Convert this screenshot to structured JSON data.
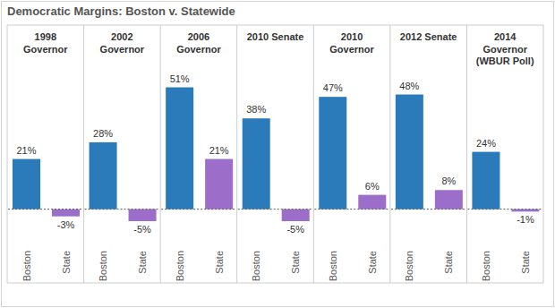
{
  "title": "Democratic Margins: Boston v. Statewide",
  "chart_data": [
    {
      "type": "bar",
      "title": "1998\nGovernor",
      "categories": [
        "Boston",
        "State"
      ],
      "values": [
        21,
        -3
      ],
      "value_labels": [
        "21%",
        "-3%"
      ],
      "colors": [
        "#2b7bba",
        "#9c6dc9"
      ],
      "ylim": [
        -14,
        54
      ],
      "yticks": [
        0
      ],
      "data_labels": true,
      "tick_labels": "x"
    },
    {
      "type": "bar",
      "title": "2002\nGovernor",
      "categories": [
        "Boston",
        "State"
      ],
      "values": [
        28,
        -5
      ],
      "value_labels": [
        "28%",
        "-5%"
      ],
      "colors": [
        "#2b7bba",
        "#9c6dc9"
      ],
      "ylim": [
        -14,
        54
      ],
      "yticks": [
        0
      ],
      "data_labels": true,
      "tick_labels": "x"
    },
    {
      "type": "bar",
      "title": "2006\nGovernor",
      "categories": [
        "Boston",
        "State"
      ],
      "values": [
        51,
        21
      ],
      "value_labels": [
        "51%",
        "21%"
      ],
      "colors": [
        "#2b7bba",
        "#9c6dc9"
      ],
      "ylim": [
        -14,
        54
      ],
      "yticks": [
        0
      ],
      "data_labels": true,
      "tick_labels": "x"
    },
    {
      "type": "bar",
      "title": "2010 Senate",
      "categories": [
        "Boston",
        "State"
      ],
      "values": [
        38,
        -5
      ],
      "value_labels": [
        "38%",
        "-5%"
      ],
      "colors": [
        "#2b7bba",
        "#9c6dc9"
      ],
      "ylim": [
        -14,
        54
      ],
      "yticks": [
        0
      ],
      "data_labels": true,
      "tick_labels": "x"
    },
    {
      "type": "bar",
      "title": "2010\nGovernor",
      "categories": [
        "Boston",
        "State"
      ],
      "values": [
        47,
        6
      ],
      "value_labels": [
        "47%",
        "6%"
      ],
      "colors": [
        "#2b7bba",
        "#9c6dc9"
      ],
      "ylim": [
        -14,
        54
      ],
      "yticks": [
        0
      ],
      "data_labels": true,
      "tick_labels": "x"
    },
    {
      "type": "bar",
      "title": "2012 Senate",
      "categories": [
        "Boston",
        "State"
      ],
      "values": [
        48,
        8
      ],
      "value_labels": [
        "48%",
        "8%"
      ],
      "colors": [
        "#2b7bba",
        "#9c6dc9"
      ],
      "ylim": [
        -14,
        54
      ],
      "yticks": [
        0
      ],
      "data_labels": true,
      "tick_labels": "x"
    },
    {
      "type": "bar",
      "title": "2014\nGovernor\n(WBUR Poll)",
      "categories": [
        "Boston",
        "State"
      ],
      "values": [
        24,
        -1
      ],
      "value_labels": [
        "24%",
        "-1%"
      ],
      "colors": [
        "#2b7bba",
        "#9c6dc9"
      ],
      "ylim": [
        -14,
        54
      ],
      "yticks": [
        0
      ],
      "data_labels": true,
      "tick_labels": "x"
    }
  ]
}
